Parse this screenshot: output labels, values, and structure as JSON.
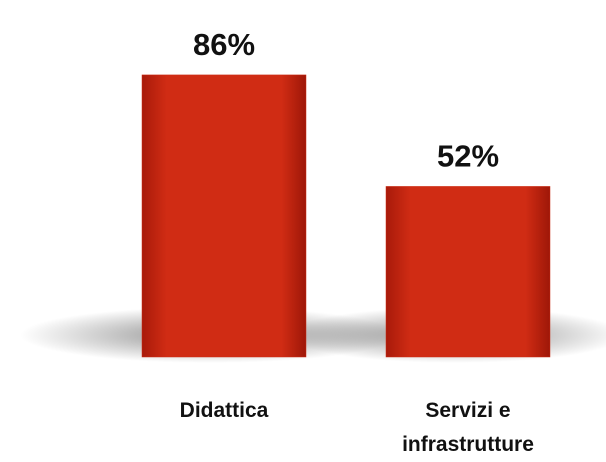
{
  "chart_data": {
    "type": "bar",
    "categories": [
      "Didattica",
      "Servizi e infrastrutture"
    ],
    "values": [
      86,
      52
    ],
    "value_labels": [
      "86%",
      "52%"
    ],
    "color": "#cc2a12"
  }
}
